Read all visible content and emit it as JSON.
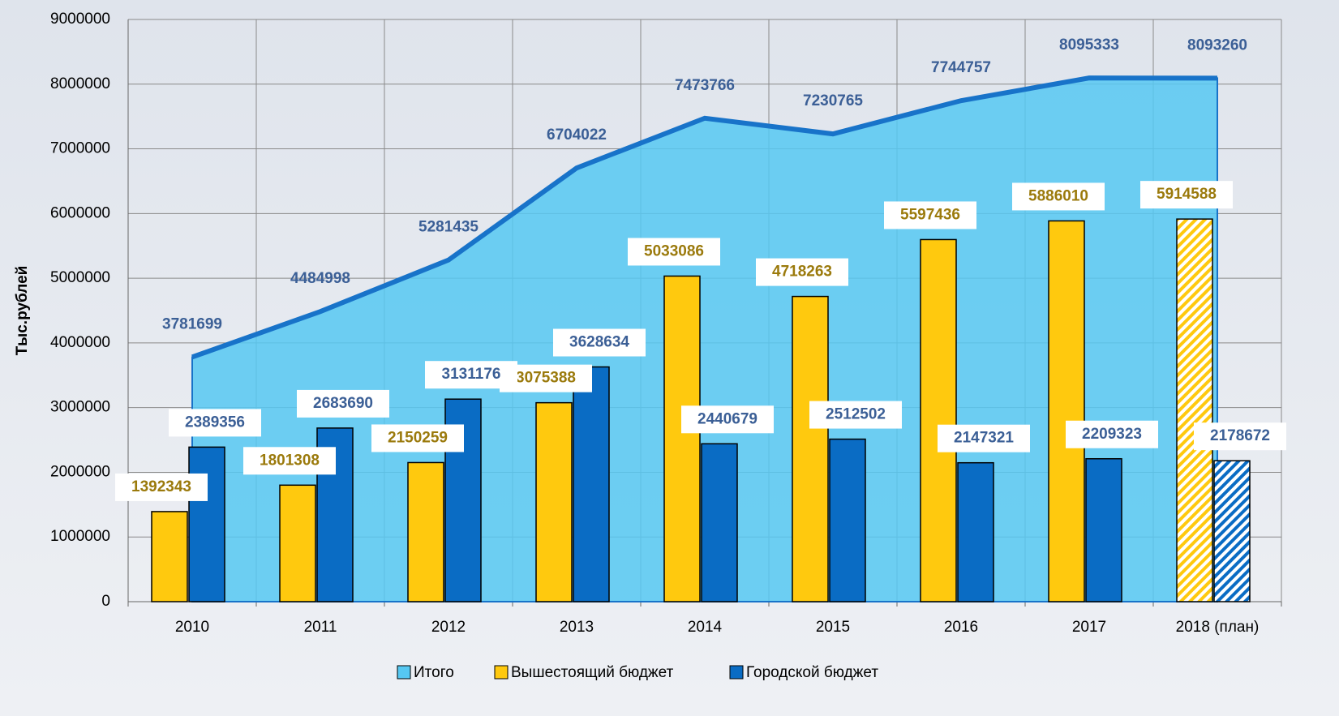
{
  "chart_data": {
    "type": "bar",
    "y_label": "Тыс.рублей",
    "categories": [
      "2010",
      "2011",
      "2012",
      "2013",
      "2014",
      "2015",
      "2016",
      "2017",
      "2018 (план)"
    ],
    "series": [
      {
        "name": "Итого",
        "type": "area",
        "color": "#56c8f2",
        "values": [
          3781699,
          4484998,
          5281435,
          6704022,
          7473766,
          7230765,
          7744757,
          8095333,
          8093260
        ]
      },
      {
        "name": "Вышестоящий бюджет",
        "type": "bar",
        "color": "#ffc90e",
        "values": [
          1392343,
          1801308,
          2150259,
          3075388,
          5033086,
          4718263,
          5597436,
          5886010,
          5914588
        ]
      },
      {
        "name": "Городской бюджет",
        "type": "bar",
        "color": "#0a6cc4",
        "values": [
          2389356,
          2683690,
          3131176,
          3628634,
          2440679,
          2512502,
          2147321,
          2209323,
          2178672
        ]
      }
    ],
    "ylim": [
      0,
      9000000
    ],
    "yticks": [
      0,
      1000000,
      2000000,
      3000000,
      4000000,
      5000000,
      6000000,
      7000000,
      8000000,
      9000000
    ],
    "grid": true
  }
}
